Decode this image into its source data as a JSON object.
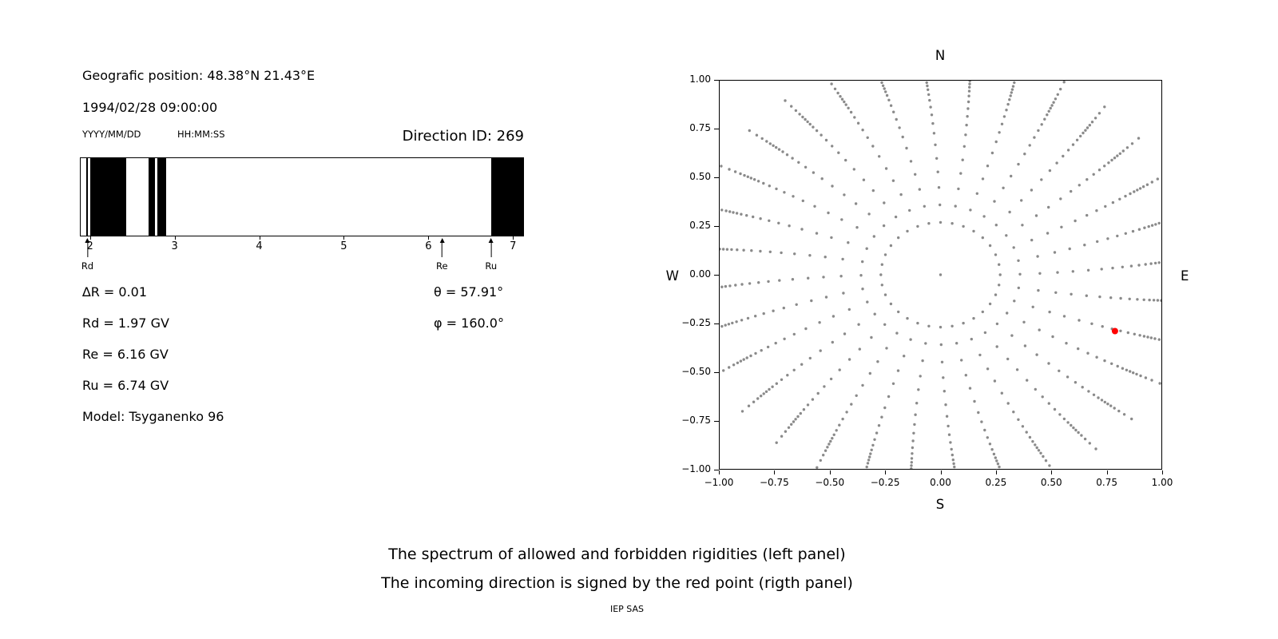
{
  "left_panel": {
    "position": "Geografic position: 48.38°N 21.43°E",
    "datetime": "1994/02/28 09:00:00",
    "date_format": "YYYY/MM/DD",
    "time_format": "HH:MM:SS",
    "direction_id": "Direction ID: 269",
    "params_left": [
      "∆R = 0.01",
      "Rd = 1.97 GV",
      "Re = 6.16 GV",
      "Ru = 6.74 GV",
      "Model: Tsyganenko 96"
    ],
    "params_right": [
      "θ = 57.91°",
      "φ = 160.0°"
    ]
  },
  "captions": {
    "line1": "The spectrum of allowed and forbidden rigidities (left panel)",
    "line2": "The incoming direction is signed by the red point (rigth panel)",
    "footer": "IEP SAS"
  },
  "chart_data": [
    {
      "type": "bar",
      "description": "Rigidity spectrum: black bands = forbidden rigidities, white = allowed",
      "x_range": [
        1.89,
        7.12
      ],
      "x_ticks": [
        2,
        3,
        4,
        5,
        6,
        7
      ],
      "forbidden_bands": [
        [
          1.955,
          1.975
        ],
        [
          2.0,
          2.43
        ],
        [
          2.69,
          2.77
        ],
        [
          2.8,
          2.9
        ],
        [
          6.74,
          7.12
        ]
      ],
      "markers": [
        {
          "label": "Rd",
          "x": 1.97
        },
        {
          "label": "Re",
          "x": 6.16
        },
        {
          "label": "Ru",
          "x": 6.74
        }
      ],
      "band_color": "#000000"
    },
    {
      "type": "scatter",
      "description": "Incoming directions map: gray dot spokes radiating from center, red point marks the incoming direction",
      "xlim": [
        -1,
        1
      ],
      "ylim": [
        -1,
        1
      ],
      "x_ticks": [
        "−1.00",
        "−0.75",
        "−0.50",
        "−0.25",
        "0.00",
        "0.25",
        "0.50",
        "0.75",
        "1.00"
      ],
      "y_ticks": [
        "1.00",
        "0.75",
        "0.50",
        "0.25",
        "0.00",
        "−0.25",
        "−0.50",
        "−0.75",
        "−1.00"
      ],
      "compass": {
        "top": "N",
        "bottom": "S",
        "left": "W",
        "right": "E"
      },
      "dot_color": "#8a8a8a",
      "spokes": {
        "count": 32,
        "start_angle_deg": 0,
        "curl_deg": 5,
        "radii": [
          0.27,
          0.36,
          0.45,
          0.53,
          0.6,
          0.67,
          0.73,
          0.78,
          0.825,
          0.865,
          0.9,
          0.93,
          0.955,
          0.975,
          0.992,
          1.008,
          1.025,
          1.045,
          1.07,
          1.1,
          1.14
        ]
      },
      "center_dot": [
        0,
        0
      ],
      "red_point": {
        "x": 0.79,
        "y": -0.29,
        "color": "#ff0000"
      }
    }
  ]
}
